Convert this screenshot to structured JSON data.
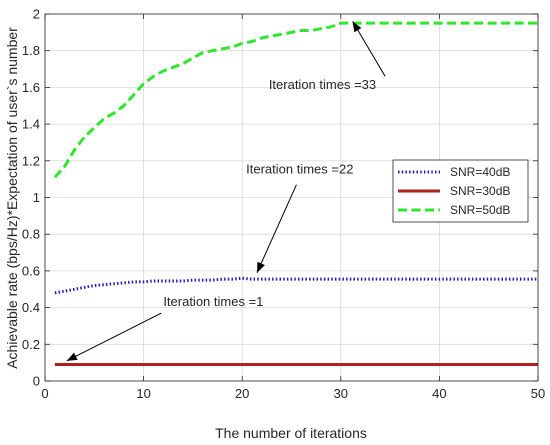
{
  "chart_data": {
    "type": "line",
    "title": "",
    "xlabel": "The number of iterations",
    "ylabel": "Achievable rate (bps/Hz)*Expectation of user`s number",
    "xlim": [
      0,
      50
    ],
    "ylim": [
      0,
      2
    ],
    "xticks": [
      0,
      10,
      20,
      30,
      40,
      50
    ],
    "yticks": [
      0,
      0.2,
      0.4,
      0.6,
      0.8,
      1,
      1.2,
      1.4,
      1.6,
      1.8,
      2
    ],
    "xtick_labels": [
      "0",
      "10",
      "20",
      "30",
      "40",
      "50"
    ],
    "ytick_labels": [
      "0",
      "0.2",
      "0.4",
      "0.6",
      "0.8",
      "1",
      "1.2",
      "1.4",
      "1.6",
      "1.8",
      "2"
    ],
    "grid": true,
    "legend_position": "right",
    "x": [
      1,
      2,
      3,
      4,
      5,
      6,
      7,
      8,
      9,
      10,
      11,
      12,
      13,
      14,
      15,
      16,
      17,
      18,
      19,
      20,
      21,
      22,
      23,
      24,
      25,
      26,
      27,
      28,
      29,
      30,
      31,
      32,
      33,
      34,
      35,
      36,
      37,
      38,
      39,
      40,
      41,
      42,
      43,
      44,
      45,
      46,
      47,
      48,
      49,
      50
    ],
    "series": [
      {
        "name": "SNR=40dB",
        "color": "#1f1fb4",
        "style": "dotted",
        "values": [
          0.48,
          0.49,
          0.5,
          0.51,
          0.52,
          0.525,
          0.53,
          0.535,
          0.54,
          0.54,
          0.545,
          0.545,
          0.545,
          0.545,
          0.55,
          0.55,
          0.55,
          0.555,
          0.555,
          0.56,
          0.555,
          0.555,
          0.555,
          0.555,
          0.555,
          0.555,
          0.555,
          0.555,
          0.555,
          0.555,
          0.555,
          0.555,
          0.555,
          0.555,
          0.555,
          0.555,
          0.555,
          0.555,
          0.555,
          0.555,
          0.555,
          0.555,
          0.555,
          0.555,
          0.555,
          0.555,
          0.555,
          0.555,
          0.555,
          0.555
        ]
      },
      {
        "name": "SNR=30dB",
        "color": "#b0201a",
        "style": "solid",
        "values": [
          0.09,
          0.09,
          0.09,
          0.09,
          0.09,
          0.09,
          0.09,
          0.09,
          0.09,
          0.09,
          0.09,
          0.09,
          0.09,
          0.09,
          0.09,
          0.09,
          0.09,
          0.09,
          0.09,
          0.09,
          0.09,
          0.09,
          0.09,
          0.09,
          0.09,
          0.09,
          0.09,
          0.09,
          0.09,
          0.09,
          0.09,
          0.09,
          0.09,
          0.09,
          0.09,
          0.09,
          0.09,
          0.09,
          0.09,
          0.09,
          0.09,
          0.09,
          0.09,
          0.09,
          0.09,
          0.09,
          0.09,
          0.09,
          0.09,
          0.09
        ]
      },
      {
        "name": "SNR=50dB",
        "color": "#2ee62e",
        "style": "dashed",
        "values": [
          1.11,
          1.17,
          1.26,
          1.33,
          1.38,
          1.43,
          1.46,
          1.5,
          1.56,
          1.62,
          1.66,
          1.69,
          1.71,
          1.73,
          1.76,
          1.79,
          1.8,
          1.81,
          1.82,
          1.84,
          1.85,
          1.87,
          1.88,
          1.89,
          1.9,
          1.91,
          1.91,
          1.92,
          1.93,
          1.95,
          1.95,
          1.95,
          1.95,
          1.95,
          1.95,
          1.95,
          1.95,
          1.95,
          1.95,
          1.95,
          1.95,
          1.95,
          1.95,
          1.95,
          1.95,
          1.95,
          1.95,
          1.95,
          1.95,
          1.95
        ]
      }
    ],
    "annotations": [
      {
        "text": "Iteration times =33",
        "text_at": [
          22.7,
          1.59
        ],
        "arrow_from": [
          34.5,
          1.66
        ],
        "arrow_to": [
          31.2,
          1.96
        ]
      },
      {
        "text": "Iteration times =22",
        "text_at": [
          20.4,
          1.13
        ],
        "arrow_from": [
          25.5,
          1.07
        ],
        "arrow_to": [
          21.5,
          0.59
        ]
      },
      {
        "text": "Iteration times =1",
        "text_at": [
          12.0,
          0.41
        ],
        "arrow_from": [
          11.8,
          0.37
        ],
        "arrow_to": [
          2.2,
          0.11
        ]
      }
    ]
  }
}
